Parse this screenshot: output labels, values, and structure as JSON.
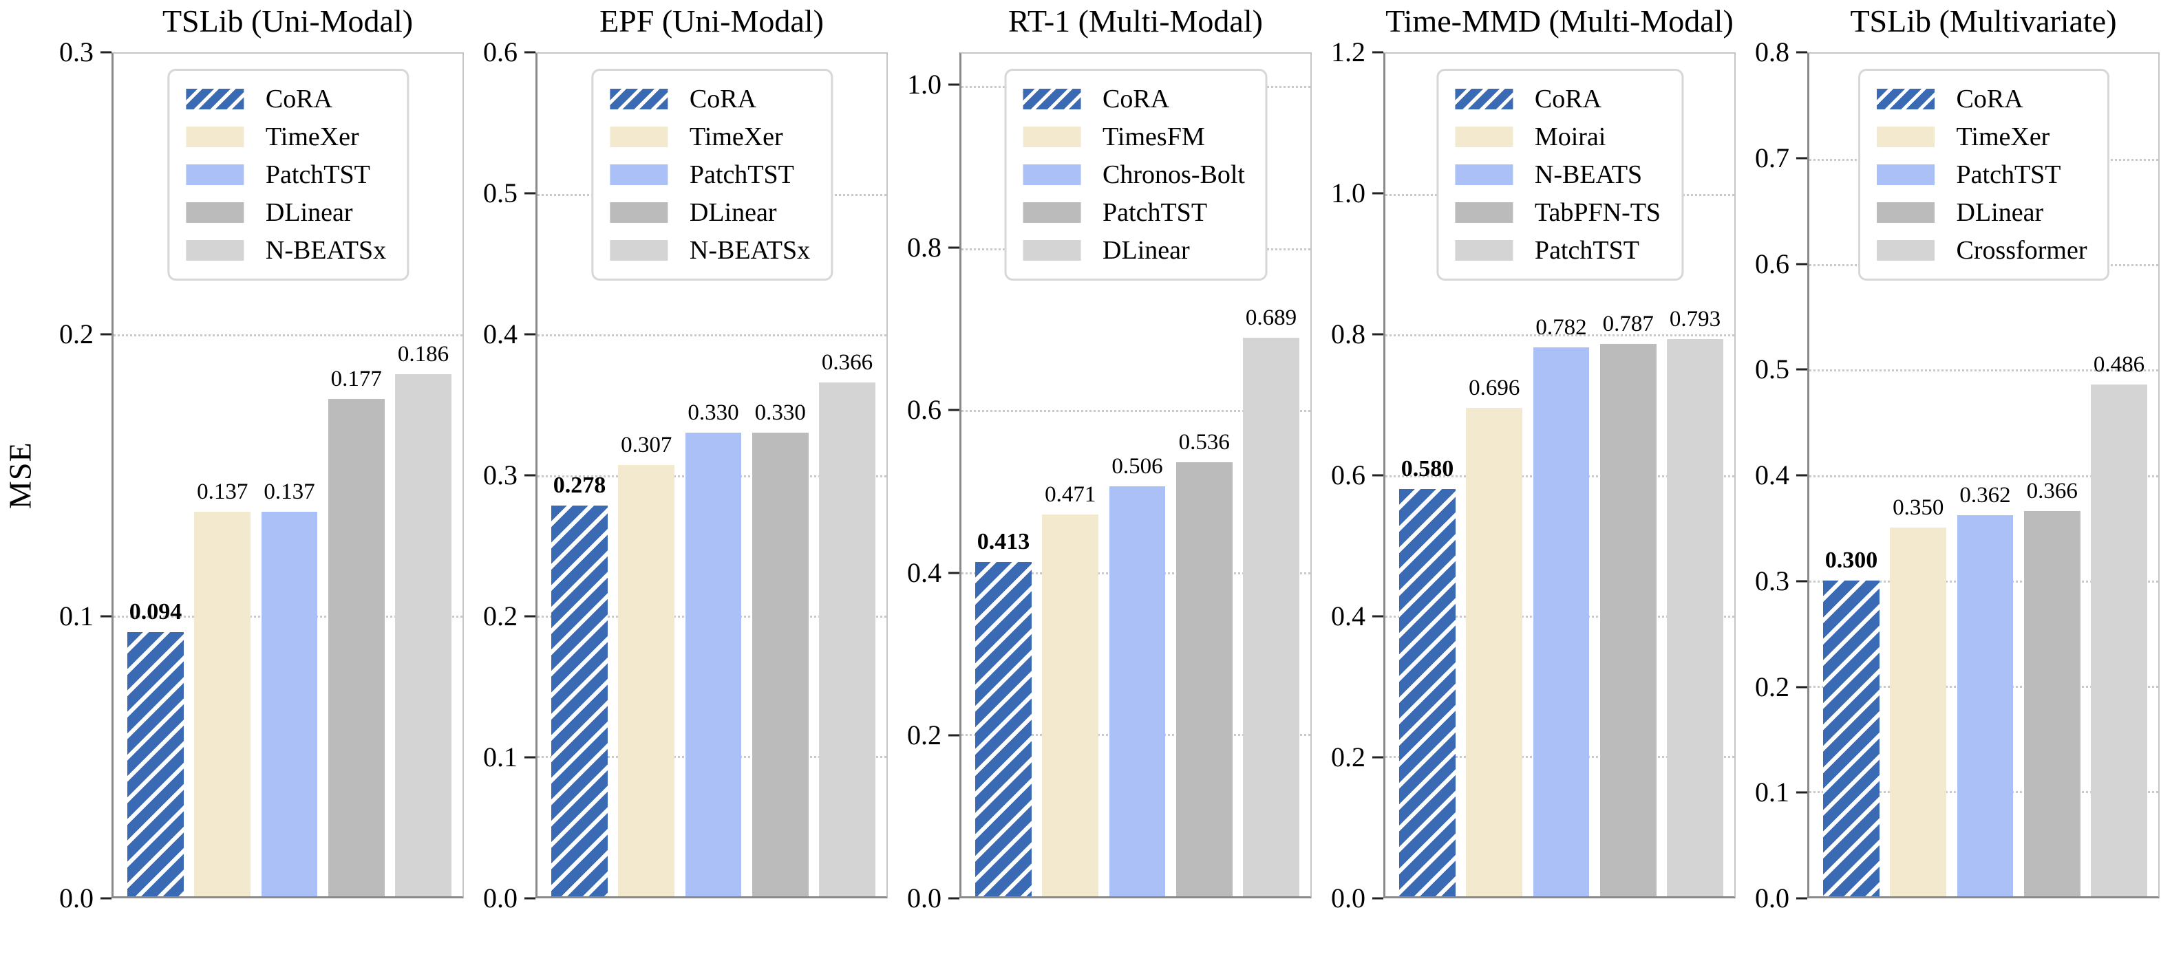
{
  "ylabel": "MSE",
  "palette": {
    "cora_blue": "#3B6AB5",
    "hatch_stripe": "#FFFFFF",
    "cream": "#F2E9CF",
    "periwinkle": "#AAC0F6",
    "gray": "#BBBBBB",
    "light_gray": "#D4D4D4",
    "grid": "#C9C9C9",
    "spine_dark": "#8A8A8A",
    "spine_light": "#C6C6C6",
    "tick": "#222222"
  },
  "color_order": [
    "cora_blue",
    "cream",
    "periwinkle",
    "gray",
    "light_gray"
  ],
  "chart_data": [
    {
      "type": "bar",
      "title": "TSLib (Uni-Modal)",
      "ylabel": "MSE",
      "ylim": [
        0,
        0.3
      ],
      "yticks": [
        0,
        0.1,
        0.2,
        0.3
      ],
      "grid": "horizontal-dotted",
      "legend_position": "upper center",
      "categories": [
        "CoRA",
        "TimeXer",
        "PatchTST",
        "DLinear",
        "N-BEATSx"
      ],
      "values": [
        0.094,
        0.137,
        0.137,
        0.177,
        0.186
      ],
      "value_labels": [
        "0.094",
        "0.137",
        "0.137",
        "0.177",
        "0.186"
      ],
      "best_index": 0
    },
    {
      "type": "bar",
      "title": "EPF (Uni-Modal)",
      "ylabel": "",
      "ylim": [
        0,
        0.6
      ],
      "yticks": [
        0,
        0.1,
        0.2,
        0.3,
        0.4,
        0.5,
        0.6
      ],
      "grid": "horizontal-dotted",
      "legend_position": "upper center",
      "categories": [
        "CoRA",
        "TimeXer",
        "PatchTST",
        "DLinear",
        "N-BEATSx"
      ],
      "values": [
        0.278,
        0.307,
        0.33,
        0.33,
        0.366
      ],
      "value_labels": [
        "0.278",
        "0.307",
        "0.330",
        "0.330",
        "0.366"
      ],
      "best_index": 0
    },
    {
      "type": "bar",
      "title": "RT-1 (Multi-Modal)",
      "ylabel": "",
      "ylim": [
        0,
        1.04
      ],
      "yticks": [
        0,
        0.2,
        0.4,
        0.6,
        0.8,
        1.0
      ],
      "grid": "horizontal-dotted",
      "legend_position": "upper center",
      "categories": [
        "CoRA",
        "TimesFM",
        "Chronos-Bolt",
        "PatchTST",
        "DLinear"
      ],
      "values": [
        0.413,
        0.471,
        0.506,
        0.536,
        0.689
      ],
      "value_labels": [
        "0.413",
        "0.471",
        "0.506",
        "0.536",
        "0.689"
      ],
      "best_index": 0
    },
    {
      "type": "bar",
      "title": "Time-MMD (Multi-Modal)",
      "ylabel": "",
      "ylim": [
        0,
        1.2
      ],
      "yticks": [
        0,
        0.2,
        0.4,
        0.6,
        0.8,
        1.0,
        1.2
      ],
      "grid": "horizontal-dotted",
      "legend_position": "upper center",
      "categories": [
        "CoRA",
        "Moirai",
        "N-BEATS",
        "TabPFN-TS",
        "PatchTST"
      ],
      "values": [
        0.58,
        0.696,
        0.782,
        0.787,
        0.793
      ],
      "value_labels": [
        "0.580",
        "0.696",
        "0.782",
        "0.787",
        "0.793"
      ],
      "best_index": 0
    },
    {
      "type": "bar",
      "title": "TSLib (Multivariate)",
      "ylabel": "",
      "ylim": [
        0,
        0.8
      ],
      "yticks": [
        0,
        0.1,
        0.2,
        0.3,
        0.4,
        0.5,
        0.6,
        0.7,
        0.8
      ],
      "grid": "horizontal-dotted",
      "legend_position": "upper center",
      "categories": [
        "CoRA",
        "TimeXer",
        "PatchTST",
        "DLinear",
        "Crossformer"
      ],
      "values": [
        0.3,
        0.35,
        0.362,
        0.366,
        0.486
      ],
      "value_labels": [
        "0.300",
        "0.350",
        "0.362",
        "0.366",
        "0.486"
      ],
      "best_index": 0
    }
  ]
}
